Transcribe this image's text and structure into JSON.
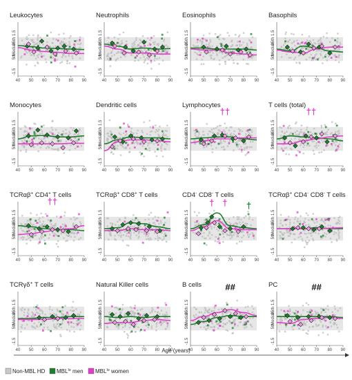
{
  "chart_data": {
    "type": "scatter",
    "xlabel": "Age (years)",
    "ytick_labels": [
      "5th",
      "Median",
      "95th"
    ],
    "y_side_labels": [
      "-1.5",
      "1.5"
    ],
    "xlim": [
      40,
      90
    ],
    "xticks": [
      40,
      50,
      60,
      70,
      80,
      90
    ],
    "legend": {
      "placement": "bottom-left",
      "entries": [
        {
          "label": "Non-MBL HD",
          "color": "#c8c8c8"
        },
        {
          "label": "MBLlo men",
          "base": "MBL",
          "sup": "lo",
          "rest": " men",
          "color": "#1e7d2e"
        },
        {
          "label": "MBLlo women",
          "base": "MBL",
          "sup": "lo",
          "rest": " women",
          "color": "#e040c8"
        }
      ]
    },
    "colors": {
      "men": "#1e7d2e",
      "women": "#e040c8",
      "hd": "#c8c8c8",
      "band": "#e6e6e6"
    },
    "panels": [
      {
        "title": "Leukocytes",
        "men_curve": [
          0.35,
          0.25,
          0.1,
          0.05,
          0.0,
          -0.05
        ],
        "women_curve": [
          0.15,
          -0.1,
          -0.25,
          -0.35,
          -0.45,
          -0.45
        ],
        "men_points": [
          [
            47,
            0.3
          ],
          [
            55,
            0.1
          ],
          [
            58,
            0.8
          ],
          [
            65,
            -0.2
          ],
          [
            70,
            0.1
          ],
          [
            75,
            0.3
          ],
          [
            82,
            0.0
          ]
        ],
        "women_points": [
          [
            48,
            0.5
          ],
          [
            52,
            -0.3
          ],
          [
            62,
            0.2
          ],
          [
            68,
            -0.5
          ],
          [
            76,
            -0.2
          ],
          [
            84,
            -0.4
          ]
        ],
        "annotation": ""
      },
      {
        "title": "Neutrophils",
        "men_curve": [
          0.5,
          0.3,
          0.0,
          0.1,
          0.0,
          0.05
        ],
        "women_curve": [
          0.3,
          0.0,
          -0.4,
          -0.4,
          -0.5,
          -0.5
        ],
        "men_points": [
          [
            46,
            0.6
          ],
          [
            56,
            0.2
          ],
          [
            62,
            -0.2
          ],
          [
            70,
            0.7
          ],
          [
            78,
            0.0
          ],
          [
            84,
            0.2
          ]
        ],
        "women_points": [
          [
            48,
            0.3
          ],
          [
            55,
            -0.4
          ],
          [
            66,
            -0.3
          ],
          [
            74,
            -0.6
          ],
          [
            80,
            -0.2
          ]
        ],
        "annotation": ""
      },
      {
        "title": "Eosinophils",
        "men_curve": [
          0.1,
          0.1,
          0.0,
          0.0,
          0.0,
          -0.1
        ],
        "women_curve": [
          0.0,
          -0.1,
          -0.1,
          -0.4,
          -0.5,
          -0.6
        ],
        "men_points": [
          [
            50,
            0.2
          ],
          [
            60,
            0.0
          ],
          [
            67,
            0.3
          ],
          [
            76,
            -0.1
          ],
          [
            82,
            0.0
          ]
        ],
        "women_points": [
          [
            52,
            -0.3
          ],
          [
            64,
            -0.1
          ],
          [
            70,
            -0.5
          ],
          [
            78,
            -0.3
          ],
          [
            85,
            -0.6
          ]
        ],
        "annotation": ""
      },
      {
        "title": "Basophils",
        "men_curve": [
          0.0,
          -0.2,
          0.3,
          0.1,
          -0.2,
          -0.3
        ],
        "women_curve": [
          -0.1,
          -0.3,
          -0.4,
          0.0,
          0.2,
          0.2
        ],
        "men_points": [
          [
            48,
            0.2
          ],
          [
            58,
            -0.3
          ],
          [
            64,
            0.5
          ],
          [
            72,
            0.2
          ],
          [
            80,
            -0.4
          ]
        ],
        "women_points": [
          [
            52,
            -0.2
          ],
          [
            60,
            -0.4
          ],
          [
            68,
            0.1
          ],
          [
            74,
            0.3
          ],
          [
            84,
            0.2
          ]
        ],
        "annotation": ""
      },
      {
        "title": "Monocytes",
        "men_curve": [
          0.0,
          0.3,
          0.35,
          0.2,
          0.2,
          0.3
        ],
        "women_curve": [
          -0.5,
          -0.5,
          -0.5,
          -0.5,
          -0.45,
          -0.45
        ],
        "men_points": [
          [
            48,
            0.3
          ],
          [
            55,
            0.9
          ],
          [
            62,
            0.4
          ],
          [
            70,
            0.2
          ],
          [
            78,
            0.1
          ],
          [
            84,
            0.8
          ]
        ],
        "women_points": [
          [
            50,
            -0.6
          ],
          [
            58,
            -0.4
          ],
          [
            66,
            -0.5
          ],
          [
            74,
            -0.9
          ],
          [
            82,
            -0.4
          ]
        ],
        "annotation": ""
      },
      {
        "title": "Dendritic cells",
        "men_curve": [
          -0.5,
          -0.1,
          0.2,
          0.1,
          0.1,
          0.0
        ],
        "women_curve": [
          -1.2,
          -0.3,
          -0.1,
          -0.1,
          -0.2,
          -0.3
        ],
        "men_points": [
          [
            48,
            0.2
          ],
          [
            54,
            -0.3
          ],
          [
            60,
            0.3
          ],
          [
            68,
            0.1
          ],
          [
            76,
            -0.1
          ],
          [
            84,
            0.0
          ]
        ],
        "women_points": [
          [
            46,
            -0.8
          ],
          [
            52,
            -0.2
          ],
          [
            62,
            0.0
          ],
          [
            70,
            -0.3
          ],
          [
            80,
            -0.2
          ]
        ],
        "annotation": ""
      },
      {
        "title": "Lymphocytes",
        "men_curve": [
          0.0,
          0.1,
          0.2,
          0.2,
          0.0,
          -0.1
        ],
        "women_curve": [
          -0.4,
          -0.2,
          0.0,
          0.0,
          0.1,
          0.1
        ],
        "men_points": [
          [
            48,
            -0.1
          ],
          [
            58,
            0.3
          ],
          [
            64,
            0.4
          ],
          [
            72,
            0.0
          ],
          [
            80,
            -0.2
          ]
        ],
        "women_points": [
          [
            50,
            -0.5
          ],
          [
            56,
            -0.2
          ],
          [
            66,
            0.3
          ],
          [
            74,
            0.1
          ],
          [
            84,
            0.2
          ]
        ],
        "annotation": "††"
      },
      {
        "title": "T cells (total)",
        "men_curve": [
          0.0,
          0.3,
          0.2,
          0.1,
          0.0,
          -0.2
        ],
        "women_curve": [
          -0.5,
          -0.5,
          -0.2,
          0.0,
          0.2,
          0.3
        ],
        "men_points": [
          [
            46,
            0.1
          ],
          [
            54,
            -0.7
          ],
          [
            62,
            0.3
          ],
          [
            70,
            0.1
          ],
          [
            78,
            -0.3
          ]
        ],
        "women_points": [
          [
            50,
            -0.4
          ],
          [
            60,
            -0.3
          ],
          [
            66,
            0.2
          ],
          [
            74,
            0.5
          ],
          [
            84,
            0.3
          ]
        ],
        "annotation": "††"
      },
      {
        "title": "TCRαβ+ CD4+ T cells",
        "title_parts": [
          [
            "TCRαβ",
            ""
          ],
          [
            "+",
            "sup"
          ],
          [
            " CD4",
            ""
          ],
          [
            "+",
            "sup"
          ],
          [
            " T cells",
            ""
          ]
        ],
        "men_curve": [
          0.3,
          0.2,
          0.0,
          -0.1,
          -0.1,
          -0.2
        ],
        "women_curve": [
          -0.6,
          -0.5,
          -0.3,
          -0.1,
          0.0,
          0.3
        ],
        "men_points": [
          [
            48,
            0.3
          ],
          [
            56,
            0.0
          ],
          [
            62,
            0.2
          ],
          [
            70,
            -0.1
          ],
          [
            78,
            -0.3
          ]
        ],
        "women_points": [
          [
            50,
            -0.6
          ],
          [
            58,
            -0.3
          ],
          [
            66,
            -0.1
          ],
          [
            74,
            -0.2
          ],
          [
            84,
            0.2
          ]
        ],
        "annotation": "††"
      },
      {
        "title": "TCRαβ+ CD8+ T cells",
        "title_parts": [
          [
            "TCRαβ",
            ""
          ],
          [
            "+",
            "sup"
          ],
          [
            " CD8",
            ""
          ],
          [
            "+",
            "sup"
          ],
          [
            " T cells",
            ""
          ]
        ],
        "men_curve": [
          0.0,
          0.1,
          0.6,
          0.5,
          0.2,
          0.0
        ],
        "women_curve": [
          -0.2,
          -0.2,
          0.0,
          -0.1,
          -0.1,
          -0.2
        ],
        "men_points": [
          [
            46,
            0.0
          ],
          [
            54,
            0.4
          ],
          [
            60,
            0.6
          ],
          [
            66,
            0.5
          ],
          [
            74,
            0.2
          ],
          [
            82,
            -0.2
          ]
        ],
        "women_points": [
          [
            50,
            -0.2
          ],
          [
            58,
            0.0
          ],
          [
            64,
            -0.1
          ],
          [
            72,
            -0.2
          ],
          [
            80,
            -0.3
          ]
        ],
        "annotation": ""
      },
      {
        "title": "CD4- CD8- T cells",
        "title_parts": [
          [
            "CD4",
            ""
          ],
          [
            "-",
            "sup"
          ],
          [
            " CD8",
            ""
          ],
          [
            "-",
            "sup"
          ],
          [
            " T cells",
            ""
          ]
        ],
        "men_curve": [
          0.0,
          0.4,
          1.6,
          0.3,
          0.1,
          0.0
        ],
        "women_curve": [
          -0.2,
          0.2,
          0.8,
          0.0,
          -0.1,
          -0.1
        ],
        "men_points": [
          [
            48,
            0.1
          ],
          [
            53,
            0.6
          ],
          [
            56,
            1.2
          ],
          [
            62,
            0.2
          ],
          [
            70,
            0.0
          ],
          [
            80,
            0.2
          ]
        ],
        "women_points": [
          [
            46,
            -0.5
          ],
          [
            52,
            0.1
          ],
          [
            58,
            0.6
          ],
          [
            66,
            -0.2
          ],
          [
            76,
            -0.3
          ]
        ],
        "annotation": "†"
      },
      {
        "title": "TCRαβ+ CD4- CD8- T cells",
        "title_parts": [
          [
            "TCRαβ",
            ""
          ],
          [
            "+",
            "sup"
          ],
          [
            " CD4",
            ""
          ],
          [
            "-",
            "sup"
          ],
          [
            " CD8",
            ""
          ],
          [
            "-",
            "sup"
          ],
          [
            " T cells",
            ""
          ]
        ],
        "men_curve": [
          0.0,
          0.0,
          0.0,
          0.1,
          0.0,
          0.0
        ],
        "women_curve": [
          0.0,
          0.0,
          0.0,
          0.0,
          0.05,
          0.1
        ],
        "men_points": [
          [
            52,
            0.0
          ],
          [
            60,
            0.1
          ],
          [
            68,
            -0.1
          ],
          [
            74,
            0.2
          ],
          [
            80,
            -0.2
          ]
        ],
        "women_points": [
          [
            56,
            0.1
          ],
          [
            64,
            0.0
          ],
          [
            72,
            0.0
          ]
        ],
        "annotation": ""
      },
      {
        "title": "TCRγδ+ T cells",
        "title_parts": [
          [
            "TCRγδ",
            ""
          ],
          [
            "+",
            "sup"
          ],
          [
            " T cells",
            ""
          ]
        ],
        "men_curve": [
          0.0,
          0.0,
          0.1,
          0.1,
          0.2,
          0.2
        ],
        "women_curve": [
          -0.1,
          -0.1,
          -0.1,
          0.0,
          0.0,
          0.0
        ],
        "men_points": [
          [
            56,
            0.1
          ],
          [
            66,
            0.2
          ],
          [
            76,
            0.1
          ],
          [
            82,
            0.3
          ]
        ],
        "women_points": [
          [
            60,
            -0.1
          ],
          [
            70,
            0.0
          ]
        ],
        "annotation": ""
      },
      {
        "title": "Natural Killer cells",
        "men_curve": [
          0.2,
          0.1,
          0.2,
          0.1,
          0.2,
          0.2
        ],
        "women_curve": [
          -0.5,
          -0.4,
          -0.4,
          -0.2,
          -0.1,
          -0.2
        ],
        "men_points": [
          [
            46,
            0.4
          ],
          [
            52,
            0.2
          ],
          [
            58,
            0.5
          ],
          [
            66,
            0.0
          ],
          [
            72,
            0.3
          ],
          [
            80,
            0.2
          ]
        ],
        "women_points": [
          [
            48,
            -0.4
          ],
          [
            56,
            -0.3
          ],
          [
            62,
            -0.6
          ],
          [
            70,
            -0.2
          ],
          [
            78,
            -0.1
          ]
        ],
        "annotation": ""
      },
      {
        "title": "B cells",
        "men_curve": [
          -0.6,
          -0.3,
          0.1,
          0.3,
          0.2,
          0.2
        ],
        "women_curve": [
          -0.2,
          0.2,
          0.6,
          0.9,
          0.6,
          0.3
        ],
        "men_points": [
          [
            46,
            -0.4
          ],
          [
            54,
            -0.2
          ],
          [
            62,
            0.0
          ],
          [
            70,
            0.2
          ],
          [
            78,
            0.1
          ]
        ],
        "women_points": [
          [
            50,
            0.1
          ],
          [
            58,
            0.4
          ],
          [
            66,
            0.8
          ],
          [
            74,
            0.5
          ],
          [
            82,
            0.2
          ]
        ],
        "annotation": "##"
      },
      {
        "title": "PC",
        "men_curve": [
          0.2,
          0.2,
          0.2,
          0.2,
          0.2,
          0.1
        ],
        "women_curve": [
          -0.4,
          -0.5,
          -0.1,
          0.0,
          0.1,
          0.0
        ],
        "men_points": [
          [
            48,
            0.3
          ],
          [
            56,
            0.1
          ],
          [
            64,
            0.2
          ],
          [
            72,
            0.2
          ],
          [
            80,
            0.1
          ]
        ],
        "women_points": [
          [
            50,
            -0.3
          ],
          [
            58,
            -0.6
          ],
          [
            66,
            -0.2
          ],
          [
            74,
            0.1
          ],
          [
            84,
            0.0
          ]
        ],
        "annotation": "##"
      }
    ]
  }
}
